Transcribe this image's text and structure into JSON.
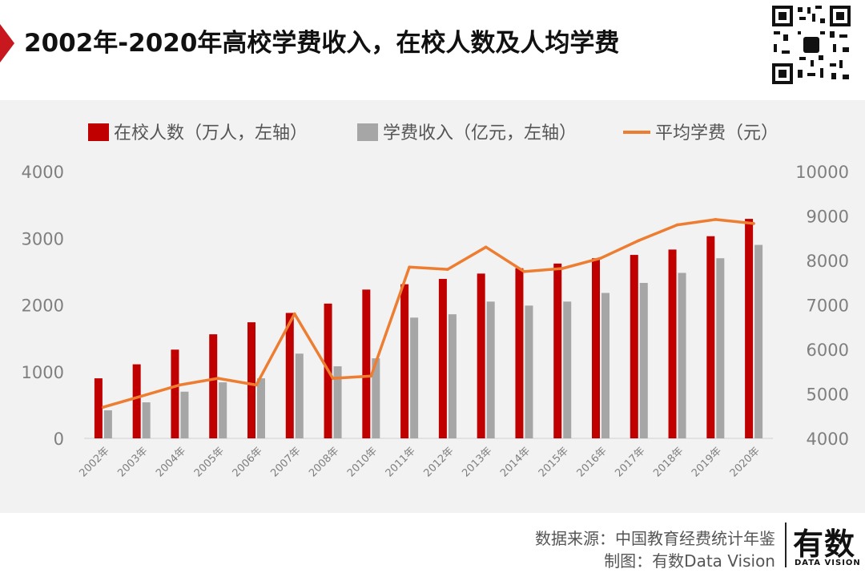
{
  "header": {
    "title": "2002年-2020年高校学费收入，在校人数及人均学费"
  },
  "footer": {
    "source": "数据来源：中国教育经费统计年鉴",
    "credit": "制图：有数Data Vision",
    "brand_cn": "有数",
    "brand_en": "DATA VISION"
  },
  "colors": {
    "accent": "#c8171e",
    "enrollment": "#c00000",
    "revenue": "#a6a6a6",
    "avg_fee": "#ed7d31",
    "panel_bg": "#f2f2f2",
    "axis_text": "#7f7f7f"
  },
  "chart_data": {
    "type": "bar",
    "title": "2002年-2020年高校学费收入，在校人数及人均学费",
    "categories": [
      "2002年",
      "2003年",
      "2004年",
      "2005年",
      "2006年",
      "2007年",
      "2008年",
      "2010年",
      "2011年",
      "2012年",
      "2013年",
      "2014年",
      "2015年",
      "2016年",
      "2017年",
      "2018年",
      "2019年",
      "2020年"
    ],
    "series": [
      {
        "name": "在校人数（万人，左轴）",
        "type": "bar",
        "axis": "left",
        "color": "#c00000",
        "values": [
          900,
          1110,
          1330,
          1560,
          1740,
          1880,
          2020,
          2230,
          2310,
          2390,
          2470,
          2550,
          2620,
          2700,
          2750,
          2830,
          3030,
          3290
        ]
      },
      {
        "name": "学费收入（亿元，左轴）",
        "type": "bar",
        "axis": "left",
        "color": "#a6a6a6",
        "values": [
          420,
          540,
          700,
          840,
          900,
          1270,
          1080,
          1200,
          1810,
          1860,
          2050,
          1990,
          2050,
          2180,
          2330,
          2480,
          2700,
          2900
        ]
      },
      {
        "name": "平均学费（元）",
        "type": "line",
        "axis": "right",
        "color": "#ed7d31",
        "values": [
          4700,
          4950,
          5200,
          5350,
          5200,
          6800,
          5350,
          5400,
          7850,
          7800,
          8300,
          7750,
          7820,
          8050,
          8450,
          8800,
          8920,
          8830
        ]
      }
    ],
    "yleft": {
      "ticks": [
        0,
        1000,
        2000,
        3000,
        4000
      ],
      "lim": [
        0,
        4000
      ]
    },
    "yright": {
      "ticks": [
        4000,
        5000,
        6000,
        7000,
        8000,
        9000,
        10000
      ],
      "lim": [
        4000,
        10000
      ]
    },
    "legend_position": "top",
    "grid": false
  }
}
